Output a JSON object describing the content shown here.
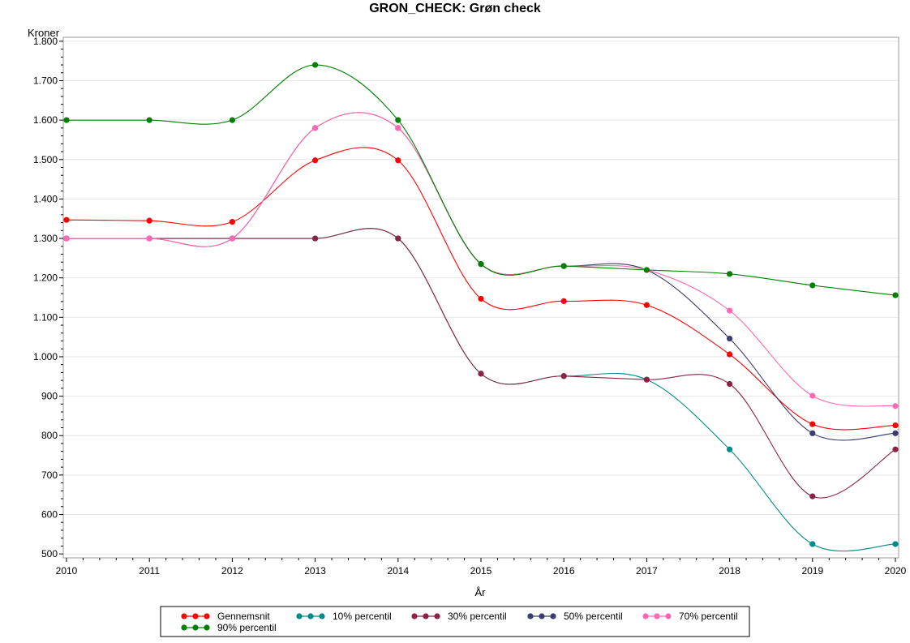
{
  "chart_data": {
    "type": "line",
    "title": "GRON_CHECK: Grøn check",
    "xlabel": "År",
    "ylabel": "Kroner",
    "x": [
      2010,
      2011,
      2012,
      2013,
      2014,
      2015,
      2016,
      2017,
      2018,
      2019,
      2020
    ],
    "xlim": [
      2010,
      2020
    ],
    "ylim": [
      490,
      1810
    ],
    "y_ticks": [
      500,
      600,
      700,
      800,
      900,
      1000,
      1100,
      1200,
      1300,
      1400,
      1500,
      1600,
      1700,
      1800
    ],
    "y_tick_labels": [
      "500",
      "600",
      "700",
      "800",
      "900",
      "1.000",
      "1.100",
      "1.200",
      "1.300",
      "1.400",
      "1.500",
      "1.600",
      "1.700",
      "1.800"
    ],
    "grid": true,
    "smooth": true,
    "legend_position": "bottom",
    "series": [
      {
        "name": "Gennemsnit",
        "color": "#ff0000",
        "values": [
          1347,
          1345,
          1342,
          1498,
          1498,
          1147,
          1141,
          1131,
          1006,
          829,
          826
        ]
      },
      {
        "name": "10% percentil",
        "color": "#008b8b",
        "values": [
          1300,
          1300,
          1300,
          1300,
          1300,
          957,
          951,
          942,
          765,
          525,
          525
        ]
      },
      {
        "name": "30% percentil",
        "color": "#8b2245",
        "values": [
          1300,
          1300,
          1300,
          1300,
          1300,
          957,
          951,
          942,
          931,
          646,
          765
        ]
      },
      {
        "name": "50% percentil",
        "color": "#3b3b6e",
        "values": [
          1300,
          1300,
          1300,
          1580,
          1580,
          1235,
          1230,
          1220,
          1046,
          806,
          806
        ]
      },
      {
        "name": "70% percentil",
        "color": "#ff69b4",
        "values": [
          1300,
          1300,
          1300,
          1580,
          1580,
          1235,
          1230,
          1220,
          1117,
          901,
          875
        ]
      },
      {
        "name": "90% percentil",
        "color": "#008000",
        "values": [
          1600,
          1600,
          1600,
          1740,
          1600,
          1235,
          1230,
          1220,
          1210,
          1181,
          1156
        ]
      }
    ]
  }
}
